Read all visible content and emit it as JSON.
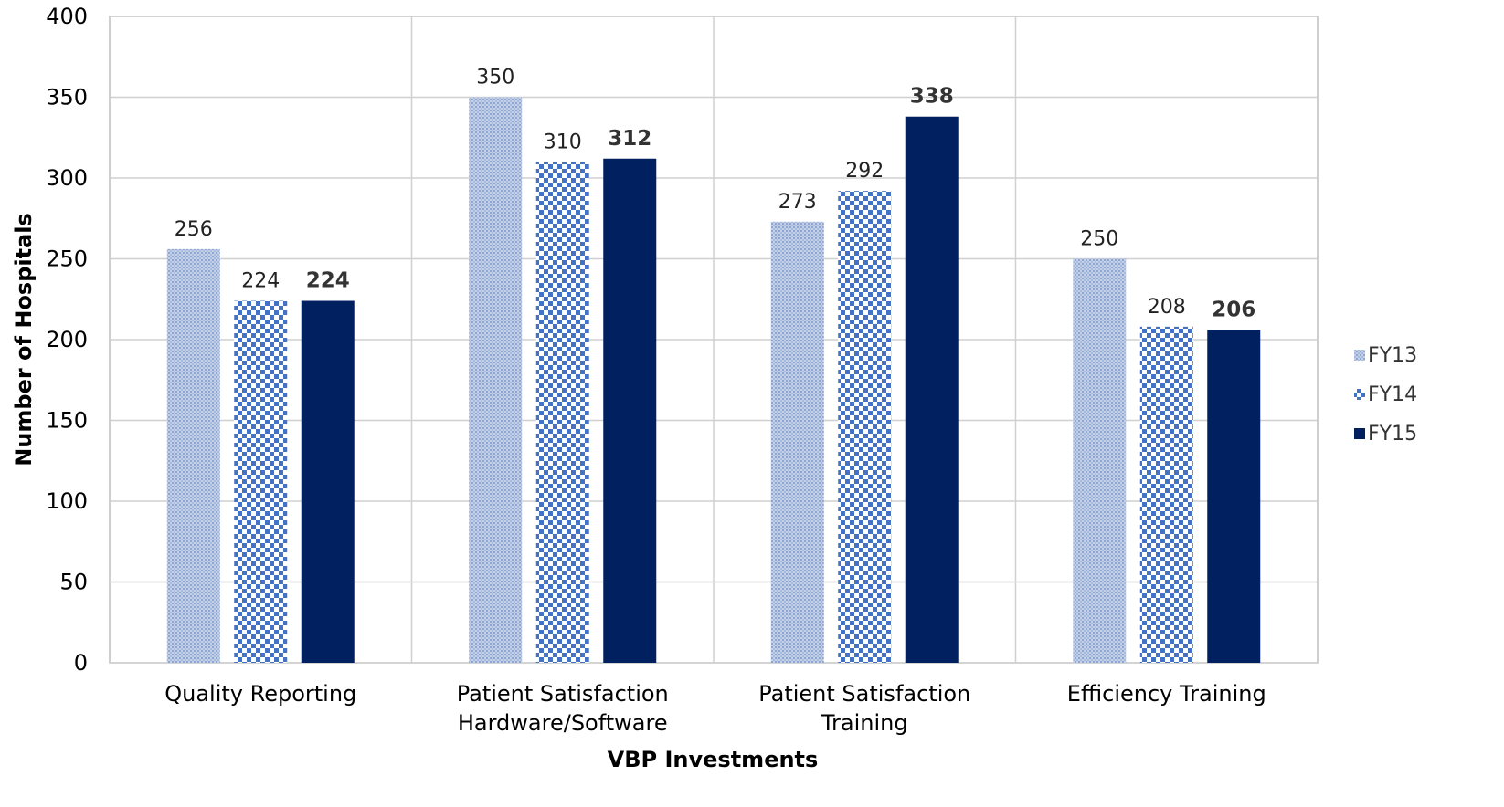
{
  "chart_data": {
    "type": "bar",
    "categories": [
      [
        "Quality Reporting"
      ],
      [
        "Patient Satisfaction",
        "Hardware/Software"
      ],
      [
        "Patient Satisfaction",
        "Training"
      ],
      [
        "Efficiency Training"
      ]
    ],
    "series": [
      {
        "name": "FY13",
        "values": [
          256,
          350,
          273,
          250
        ],
        "color": "#9fb4d8",
        "pattern": "fine-dots",
        "label_bold": false
      },
      {
        "name": "FY14",
        "values": [
          224,
          310,
          292,
          208
        ],
        "color": "#4472c4",
        "pattern": "checker",
        "label_bold": false
      },
      {
        "name": "FY15",
        "values": [
          224,
          312,
          338,
          206
        ],
        "color": "#002060",
        "pattern": "solid",
        "label_bold": true
      }
    ],
    "title": "",
    "xlabel": "VBP Investments",
    "ylabel": "Number of Hospitals",
    "ylim": [
      0,
      400
    ],
    "yticks": [
      0,
      50,
      100,
      150,
      200,
      250,
      300,
      350,
      400
    ],
    "grid": true,
    "legend_position": "right"
  }
}
